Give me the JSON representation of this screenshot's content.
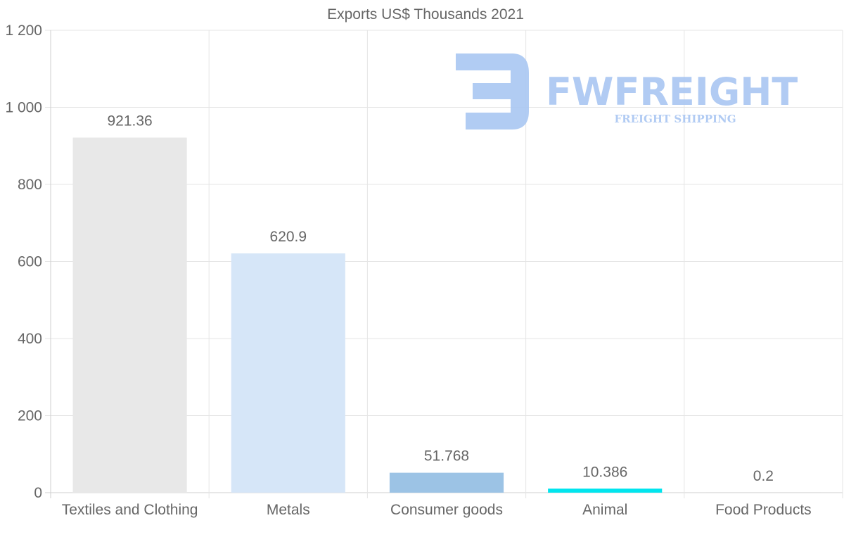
{
  "chart_data": {
    "type": "bar",
    "title": "Exports US$ Thousands 2021",
    "categories": [
      "Textiles and Clothing",
      "Metals",
      "Consumer goods",
      "Animal",
      "Food Products"
    ],
    "values": [
      921.36,
      620.9,
      51.768,
      10.386,
      0.2
    ],
    "data_labels": [
      "921.36",
      "620.9",
      "51.768",
      "10.386",
      "0.2"
    ],
    "colors": [
      "#e8e8e8",
      "#d6e6f8",
      "#9cc3e5",
      "#00e5ee",
      "#cccccc"
    ],
    "ylim": [
      0,
      1200
    ],
    "yticks": [
      0,
      200,
      400,
      600,
      800,
      1000,
      1200
    ],
    "ytick_labels": [
      "0",
      "200",
      "400",
      "600",
      "800",
      "1 000",
      "1 200"
    ],
    "xlabel": "",
    "ylabel": "",
    "grid": true,
    "legend": "none"
  },
  "watermark": {
    "brand": "FWFREIGHT",
    "tagline": "FREIGHT SHIPPING",
    "color": "#a9c6f2"
  }
}
